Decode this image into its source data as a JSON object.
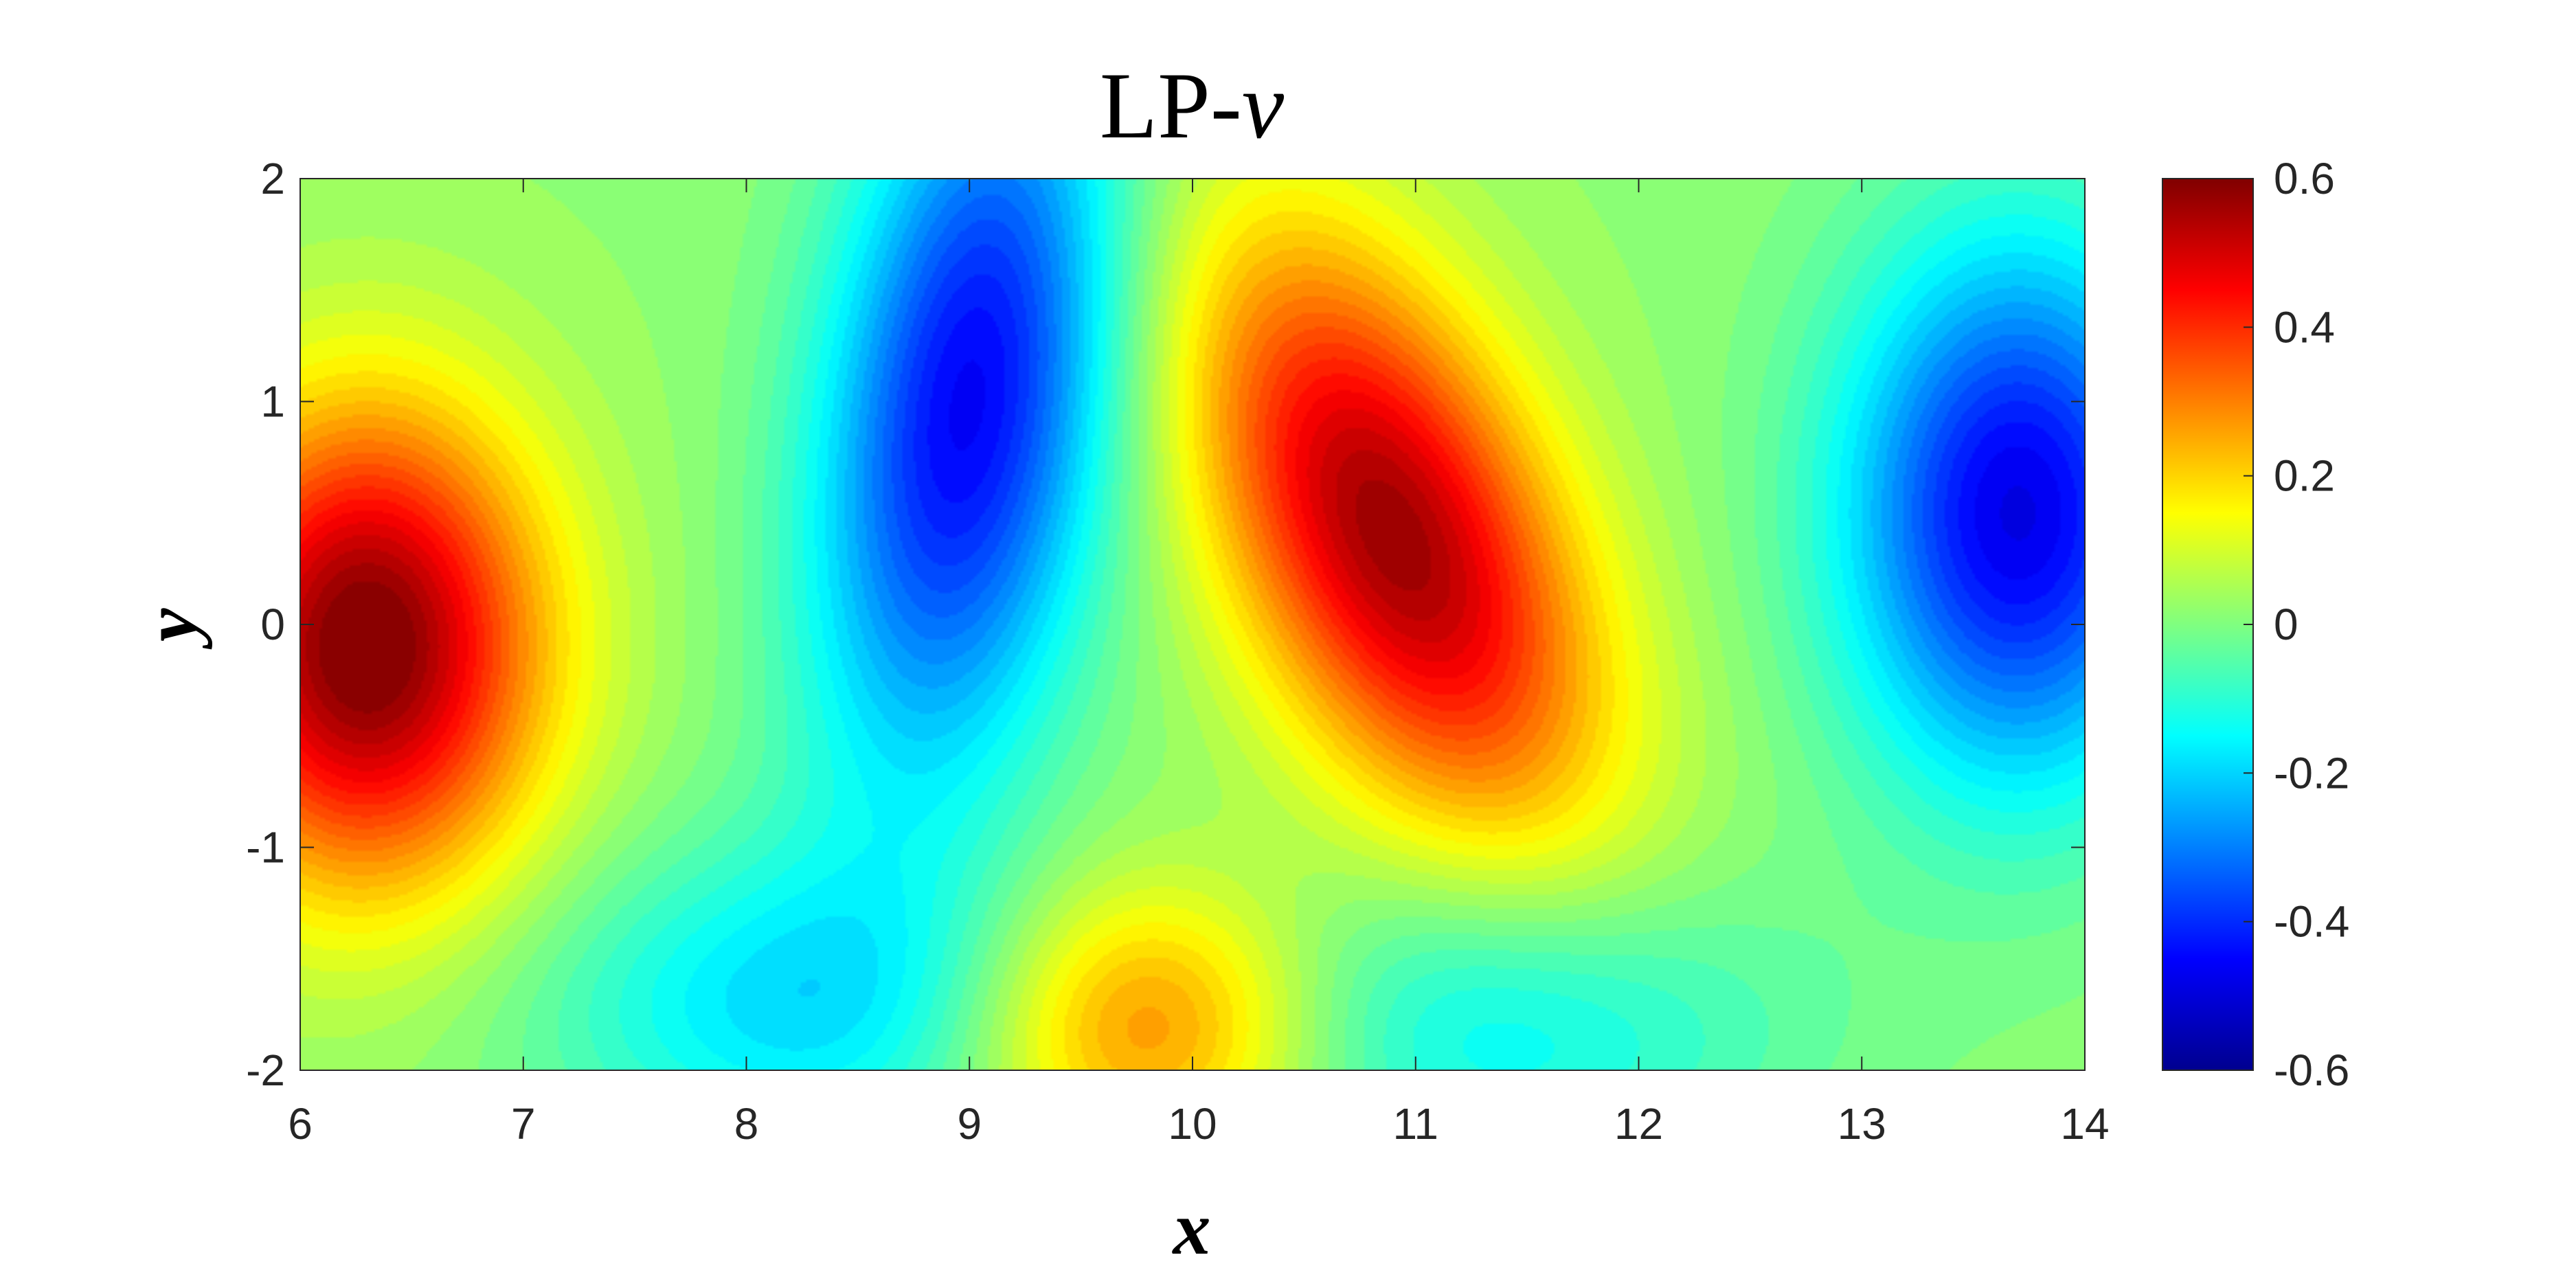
{
  "chart_data": {
    "type": "heatmap",
    "title": "LP-",
    "title_var": "v",
    "xlabel": "x",
    "ylabel": "y",
    "xlim": [
      6,
      14
    ],
    "ylim": [
      -2,
      2
    ],
    "xticks": [
      "6",
      "7",
      "8",
      "9",
      "10",
      "11",
      "12",
      "13",
      "14"
    ],
    "yticks": [
      "2",
      "1",
      "0",
      "-1",
      "-2"
    ],
    "colorbar": {
      "clim": [
        -0.6,
        0.6
      ],
      "ticks": [
        "0.6",
        "0.4",
        "0.2",
        "0",
        "-0.2",
        "-0.4",
        "-0.6"
      ],
      "colormap": "jet"
    },
    "field_extrema": [
      {
        "x": 6.3,
        "y": -0.1,
        "value": 0.6
      },
      {
        "x": 9.0,
        "y": 1.0,
        "value": -0.48
      },
      {
        "x": 10.9,
        "y": 0.4,
        "value": 0.55
      },
      {
        "x": 13.7,
        "y": 0.5,
        "value": -0.5
      },
      {
        "x": 8.2,
        "y": -1.7,
        "value": -0.2
      },
      {
        "x": 9.8,
        "y": -1.8,
        "value": 0.3
      },
      {
        "x": 11.4,
        "y": -1.8,
        "value": -0.18
      }
    ],
    "grid": false,
    "legend": "none"
  }
}
